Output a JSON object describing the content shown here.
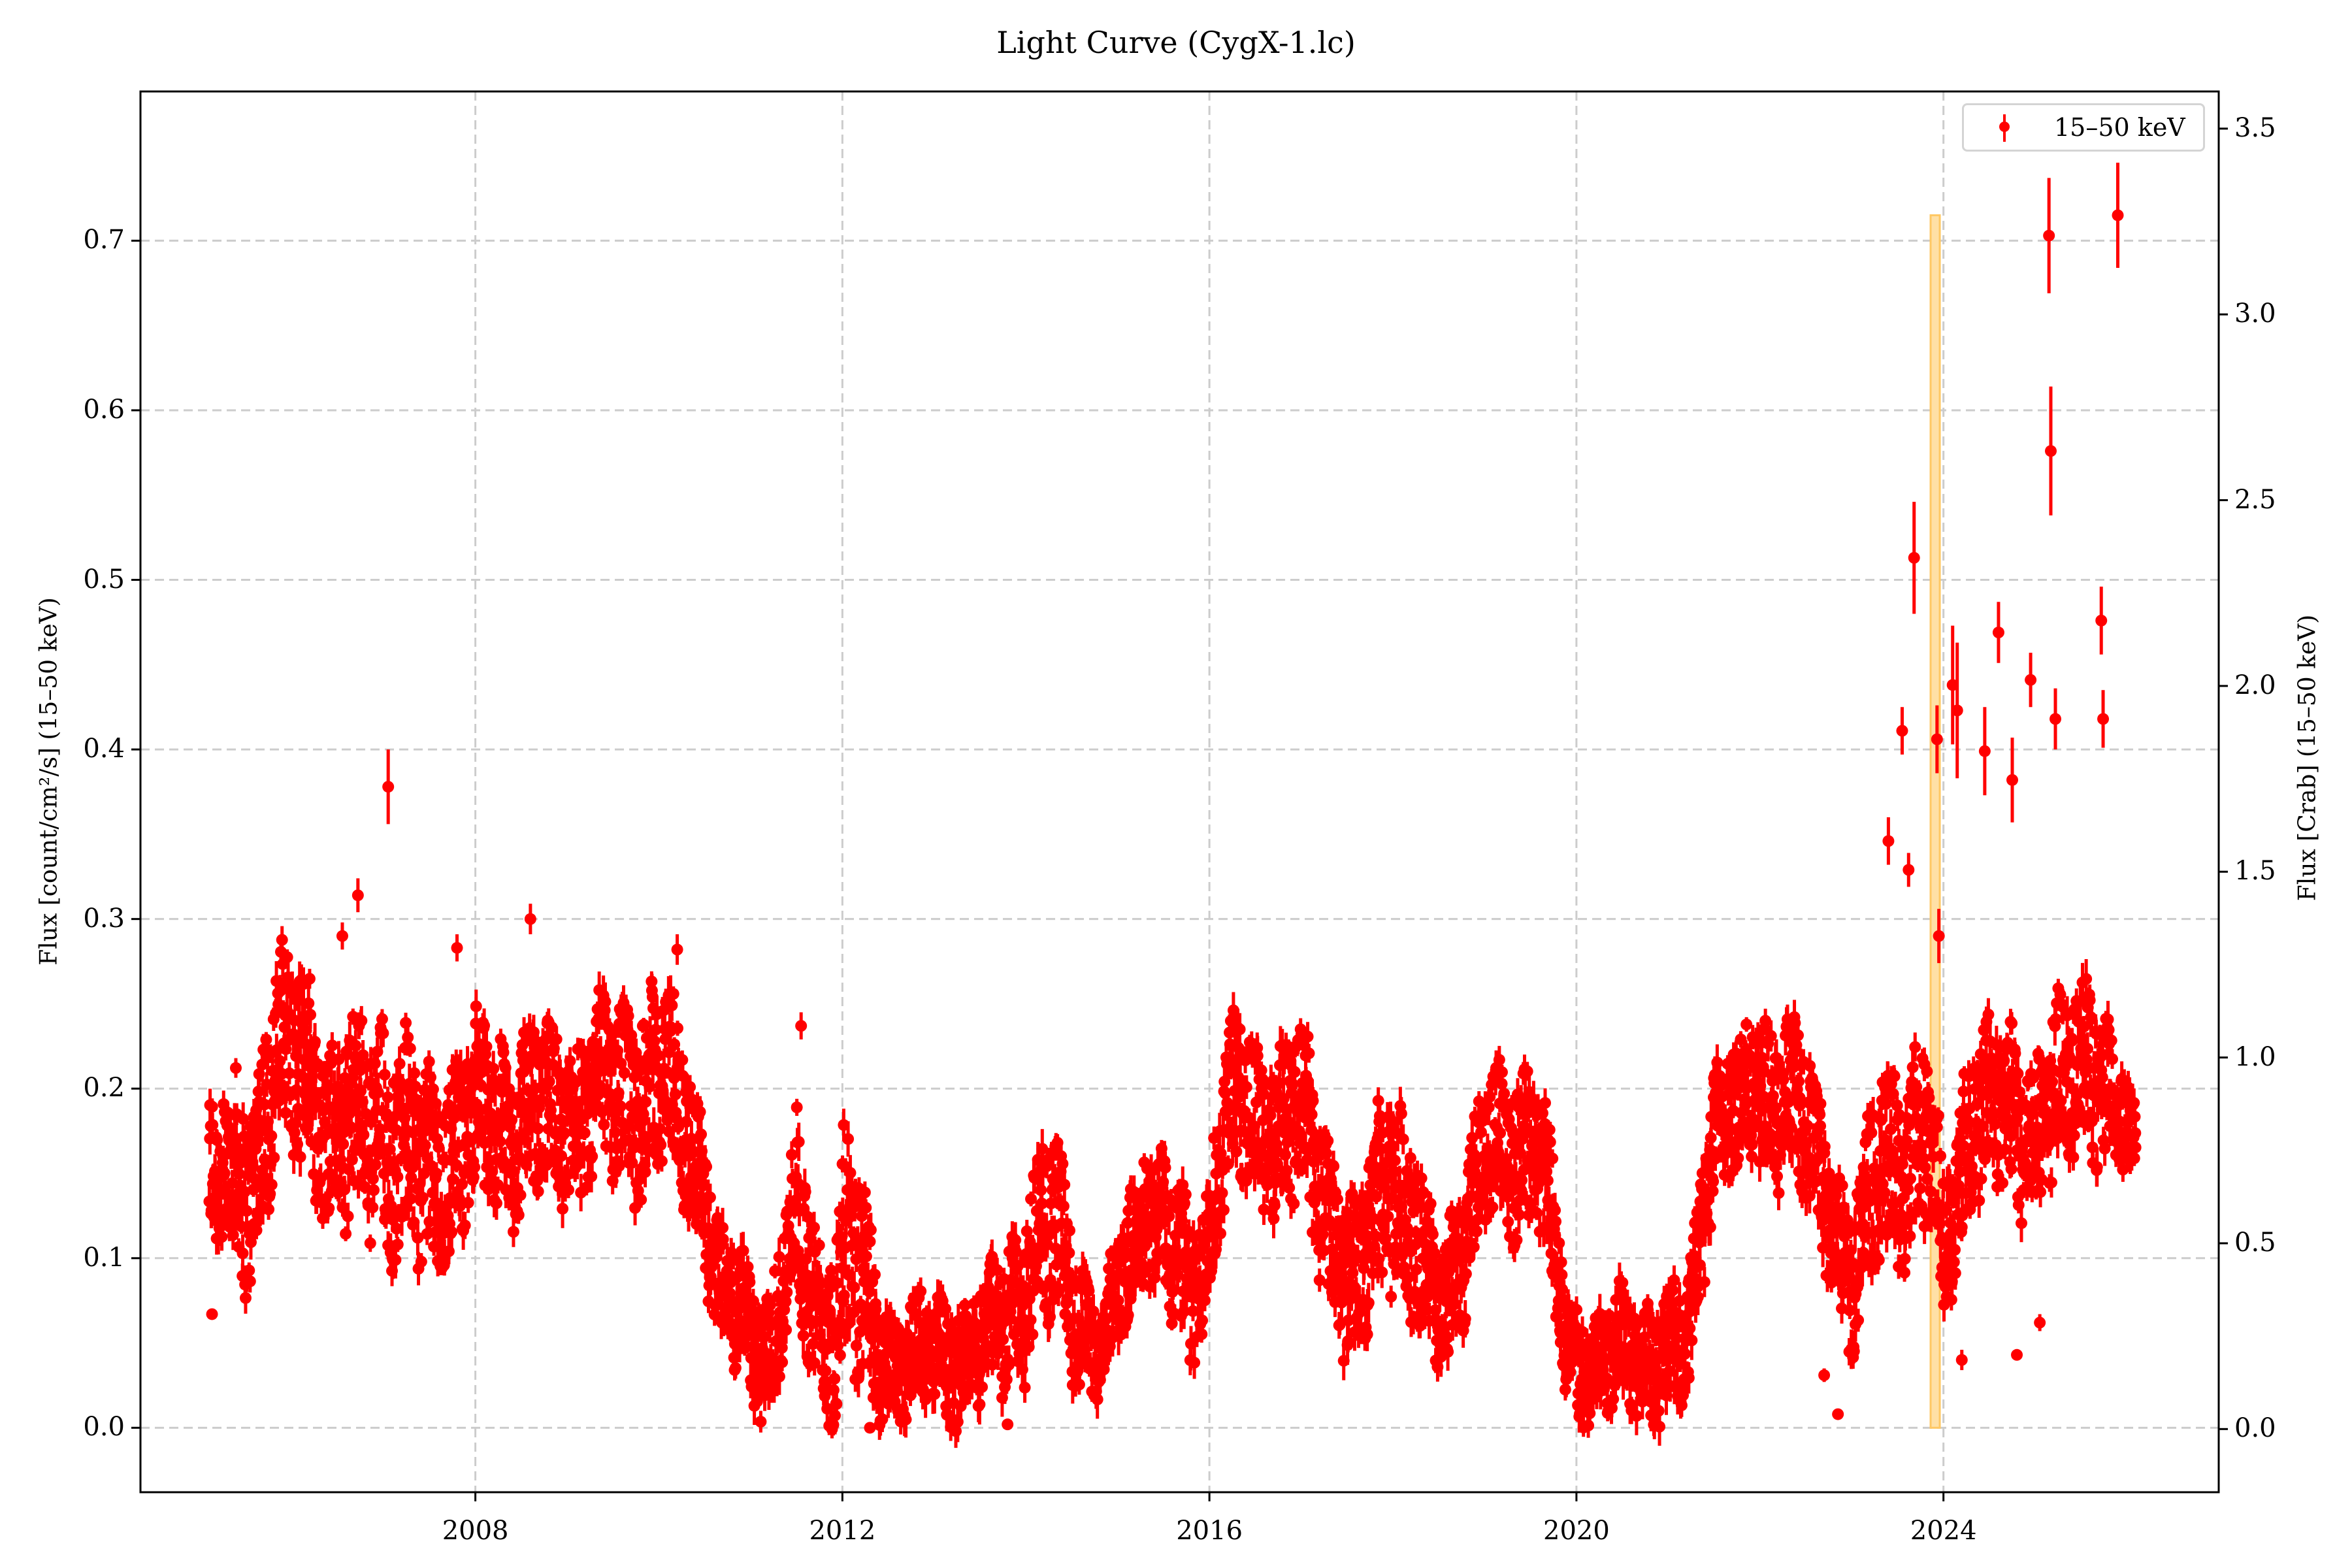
{
  "chart_data": {
    "type": "scatter",
    "subtype": "errorbar-lightcurve",
    "title": "Light Curve (CygX-1.lc)",
    "xlabel": "",
    "ylabel": "Flux [count/cm²/s] (15–50 keV)",
    "ylabel_right": "Flux [Crab] (15–50 keV)",
    "xlim": [
      2004.35,
      2027.0
    ],
    "ylim": [
      -0.038,
      0.788
    ],
    "ylim_right": [
      -0.17,
      3.6
    ],
    "x_ticks": [
      2008,
      2012,
      2016,
      2020,
      2024
    ],
    "x_tick_labels": [
      "2008",
      "2012",
      "2016",
      "2020",
      "2024"
    ],
    "y_ticks": [
      0.0,
      0.1,
      0.2,
      0.3,
      0.4,
      0.5,
      0.6,
      0.7
    ],
    "y_tick_labels": [
      "0.0",
      "0.1",
      "0.2",
      "0.3",
      "0.4",
      "0.5",
      "0.6",
      "0.7"
    ],
    "y_right_ticks": [
      0.0,
      0.5,
      1.0,
      1.5,
      2.0,
      2.5,
      3.0,
      3.5
    ],
    "y_right_tick_labels": [
      "0.0",
      "0.5",
      "1.0",
      "1.5",
      "2.0",
      "2.5",
      "3.0",
      "3.5"
    ],
    "grid": true,
    "grid_style": "dashed",
    "legend": {
      "position": "upper right",
      "entries": [
        "15–50 keV"
      ]
    },
    "series": [
      {
        "name": "15–50 keV",
        "color": "#ff0000",
        "marker": "o",
        "x_range": [
          2005.1,
          2026.1
        ],
        "envelope_note": "approximate low/high flux band vs time",
        "envelope": [
          {
            "x": 2005.1,
            "lo": 0.09,
            "hi": 0.19
          },
          {
            "x": 2005.5,
            "lo": 0.09,
            "hi": 0.2
          },
          {
            "x": 2005.8,
            "lo": 0.15,
            "hi": 0.27
          },
          {
            "x": 2006.2,
            "lo": 0.16,
            "hi": 0.27
          },
          {
            "x": 2006.5,
            "lo": 0.11,
            "hi": 0.22
          },
          {
            "x": 2007.0,
            "lo": 0.12,
            "hi": 0.25
          },
          {
            "x": 2007.4,
            "lo": 0.09,
            "hi": 0.2
          },
          {
            "x": 2008.0,
            "lo": 0.13,
            "hi": 0.23
          },
          {
            "x": 2009.0,
            "lo": 0.14,
            "hi": 0.23
          },
          {
            "x": 2010.0,
            "lo": 0.15,
            "hi": 0.26
          },
          {
            "x": 2010.4,
            "lo": 0.12,
            "hi": 0.21
          },
          {
            "x": 2010.7,
            "lo": 0.04,
            "hi": 0.11
          },
          {
            "x": 2011.2,
            "lo": 0.01,
            "hi": 0.08
          },
          {
            "x": 2011.5,
            "lo": 0.06,
            "hi": 0.17
          },
          {
            "x": 2011.8,
            "lo": 0.02,
            "hi": 0.1
          },
          {
            "x": 2012.0,
            "lo": 0.02,
            "hi": 0.18
          },
          {
            "x": 2012.5,
            "lo": 0.01,
            "hi": 0.07
          },
          {
            "x": 2013.5,
            "lo": 0.01,
            "hi": 0.08
          },
          {
            "x": 2014.3,
            "lo": 0.06,
            "hi": 0.17
          },
          {
            "x": 2014.8,
            "lo": 0.01,
            "hi": 0.06
          },
          {
            "x": 2015.3,
            "lo": 0.1,
            "hi": 0.18
          },
          {
            "x": 2015.8,
            "lo": 0.03,
            "hi": 0.12
          },
          {
            "x": 2016.2,
            "lo": 0.14,
            "hi": 0.23
          },
          {
            "x": 2017.0,
            "lo": 0.13,
            "hi": 0.23
          },
          {
            "x": 2017.6,
            "lo": 0.03,
            "hi": 0.12
          },
          {
            "x": 2018.0,
            "lo": 0.1,
            "hi": 0.22
          },
          {
            "x": 2018.5,
            "lo": 0.02,
            "hi": 0.1
          },
          {
            "x": 2019.0,
            "lo": 0.12,
            "hi": 0.2
          },
          {
            "x": 2019.6,
            "lo": 0.12,
            "hi": 0.22
          },
          {
            "x": 2019.9,
            "lo": 0.01,
            "hi": 0.07
          },
          {
            "x": 2021.2,
            "lo": 0.01,
            "hi": 0.08
          },
          {
            "x": 2021.5,
            "lo": 0.14,
            "hi": 0.22
          },
          {
            "x": 2022.3,
            "lo": 0.16,
            "hi": 0.25
          },
          {
            "x": 2022.7,
            "lo": 0.1,
            "hi": 0.18
          },
          {
            "x": 2023.0,
            "lo": 0.05,
            "hi": 0.13
          },
          {
            "x": 2023.4,
            "lo": 0.1,
            "hi": 0.22
          },
          {
            "x": 2023.8,
            "lo": 0.12,
            "hi": 0.23
          },
          {
            "x": 2024.0,
            "lo": 0.06,
            "hi": 0.14
          },
          {
            "x": 2024.3,
            "lo": 0.14,
            "hi": 0.24
          },
          {
            "x": 2025.0,
            "lo": 0.13,
            "hi": 0.22
          },
          {
            "x": 2025.6,
            "lo": 0.17,
            "hi": 0.27
          },
          {
            "x": 2026.1,
            "lo": 0.14,
            "hi": 0.18
          }
        ],
        "notable_points": [
          {
            "x": 2005.13,
            "y": 0.067,
            "err": 0.003
          },
          {
            "x": 2006.55,
            "y": 0.29,
            "err": 0.008
          },
          {
            "x": 2006.72,
            "y": 0.314,
            "err": 0.01
          },
          {
            "x": 2007.05,
            "y": 0.378,
            "err": 0.022
          },
          {
            "x": 2007.8,
            "y": 0.283,
            "err": 0.008
          },
          {
            "x": 2008.6,
            "y": 0.3,
            "err": 0.009
          },
          {
            "x": 2010.2,
            "y": 0.282,
            "err": 0.009
          },
          {
            "x": 2011.55,
            "y": 0.237,
            "err": 0.008
          },
          {
            "x": 2012.3,
            "y": 0.0,
            "err": 0.003
          },
          {
            "x": 2013.8,
            "y": 0.002,
            "err": 0.003
          },
          {
            "x": 2022.7,
            "y": 0.031,
            "err": 0.004
          },
          {
            "x": 2022.85,
            "y": 0.008,
            "err": 0.003
          },
          {
            "x": 2023.4,
            "y": 0.346,
            "err": 0.014
          },
          {
            "x": 2023.55,
            "y": 0.411,
            "err": 0.014
          },
          {
            "x": 2023.62,
            "y": 0.329,
            "err": 0.01
          },
          {
            "x": 2023.68,
            "y": 0.513,
            "err": 0.033
          },
          {
            "x": 2023.93,
            "y": 0.406,
            "err": 0.02
          },
          {
            "x": 2023.95,
            "y": 0.29,
            "err": 0.016
          },
          {
            "x": 2024.1,
            "y": 0.438,
            "err": 0.035
          },
          {
            "x": 2024.15,
            "y": 0.423,
            "err": 0.04
          },
          {
            "x": 2024.2,
            "y": 0.04,
            "err": 0.006
          },
          {
            "x": 2024.45,
            "y": 0.399,
            "err": 0.026
          },
          {
            "x": 2024.6,
            "y": 0.469,
            "err": 0.018
          },
          {
            "x": 2024.75,
            "y": 0.382,
            "err": 0.025
          },
          {
            "x": 2024.8,
            "y": 0.043,
            "err": 0.003
          },
          {
            "x": 2024.95,
            "y": 0.441,
            "err": 0.016
          },
          {
            "x": 2025.15,
            "y": 0.703,
            "err": 0.034
          },
          {
            "x": 2025.17,
            "y": 0.576,
            "err": 0.038
          },
          {
            "x": 2025.22,
            "y": 0.418,
            "err": 0.018
          },
          {
            "x": 2025.05,
            "y": 0.062,
            "err": 0.005
          },
          {
            "x": 2025.72,
            "y": 0.476,
            "err": 0.02
          },
          {
            "x": 2025.74,
            "y": 0.418,
            "err": 0.017
          },
          {
            "x": 2025.9,
            "y": 0.715,
            "err": 0.031
          }
        ]
      }
    ],
    "annotations": [
      {
        "type": "axvspan",
        "x0": 2023.86,
        "x1": 2023.96,
        "y0": 0.0,
        "y1": 0.715,
        "color": "#ffa500",
        "alpha": 0.35
      }
    ]
  },
  "colors": {
    "series": "#ff0000",
    "grid": "#cccccc",
    "span_fill": "#ffe0a6",
    "span_edge": "#ffc864"
  }
}
